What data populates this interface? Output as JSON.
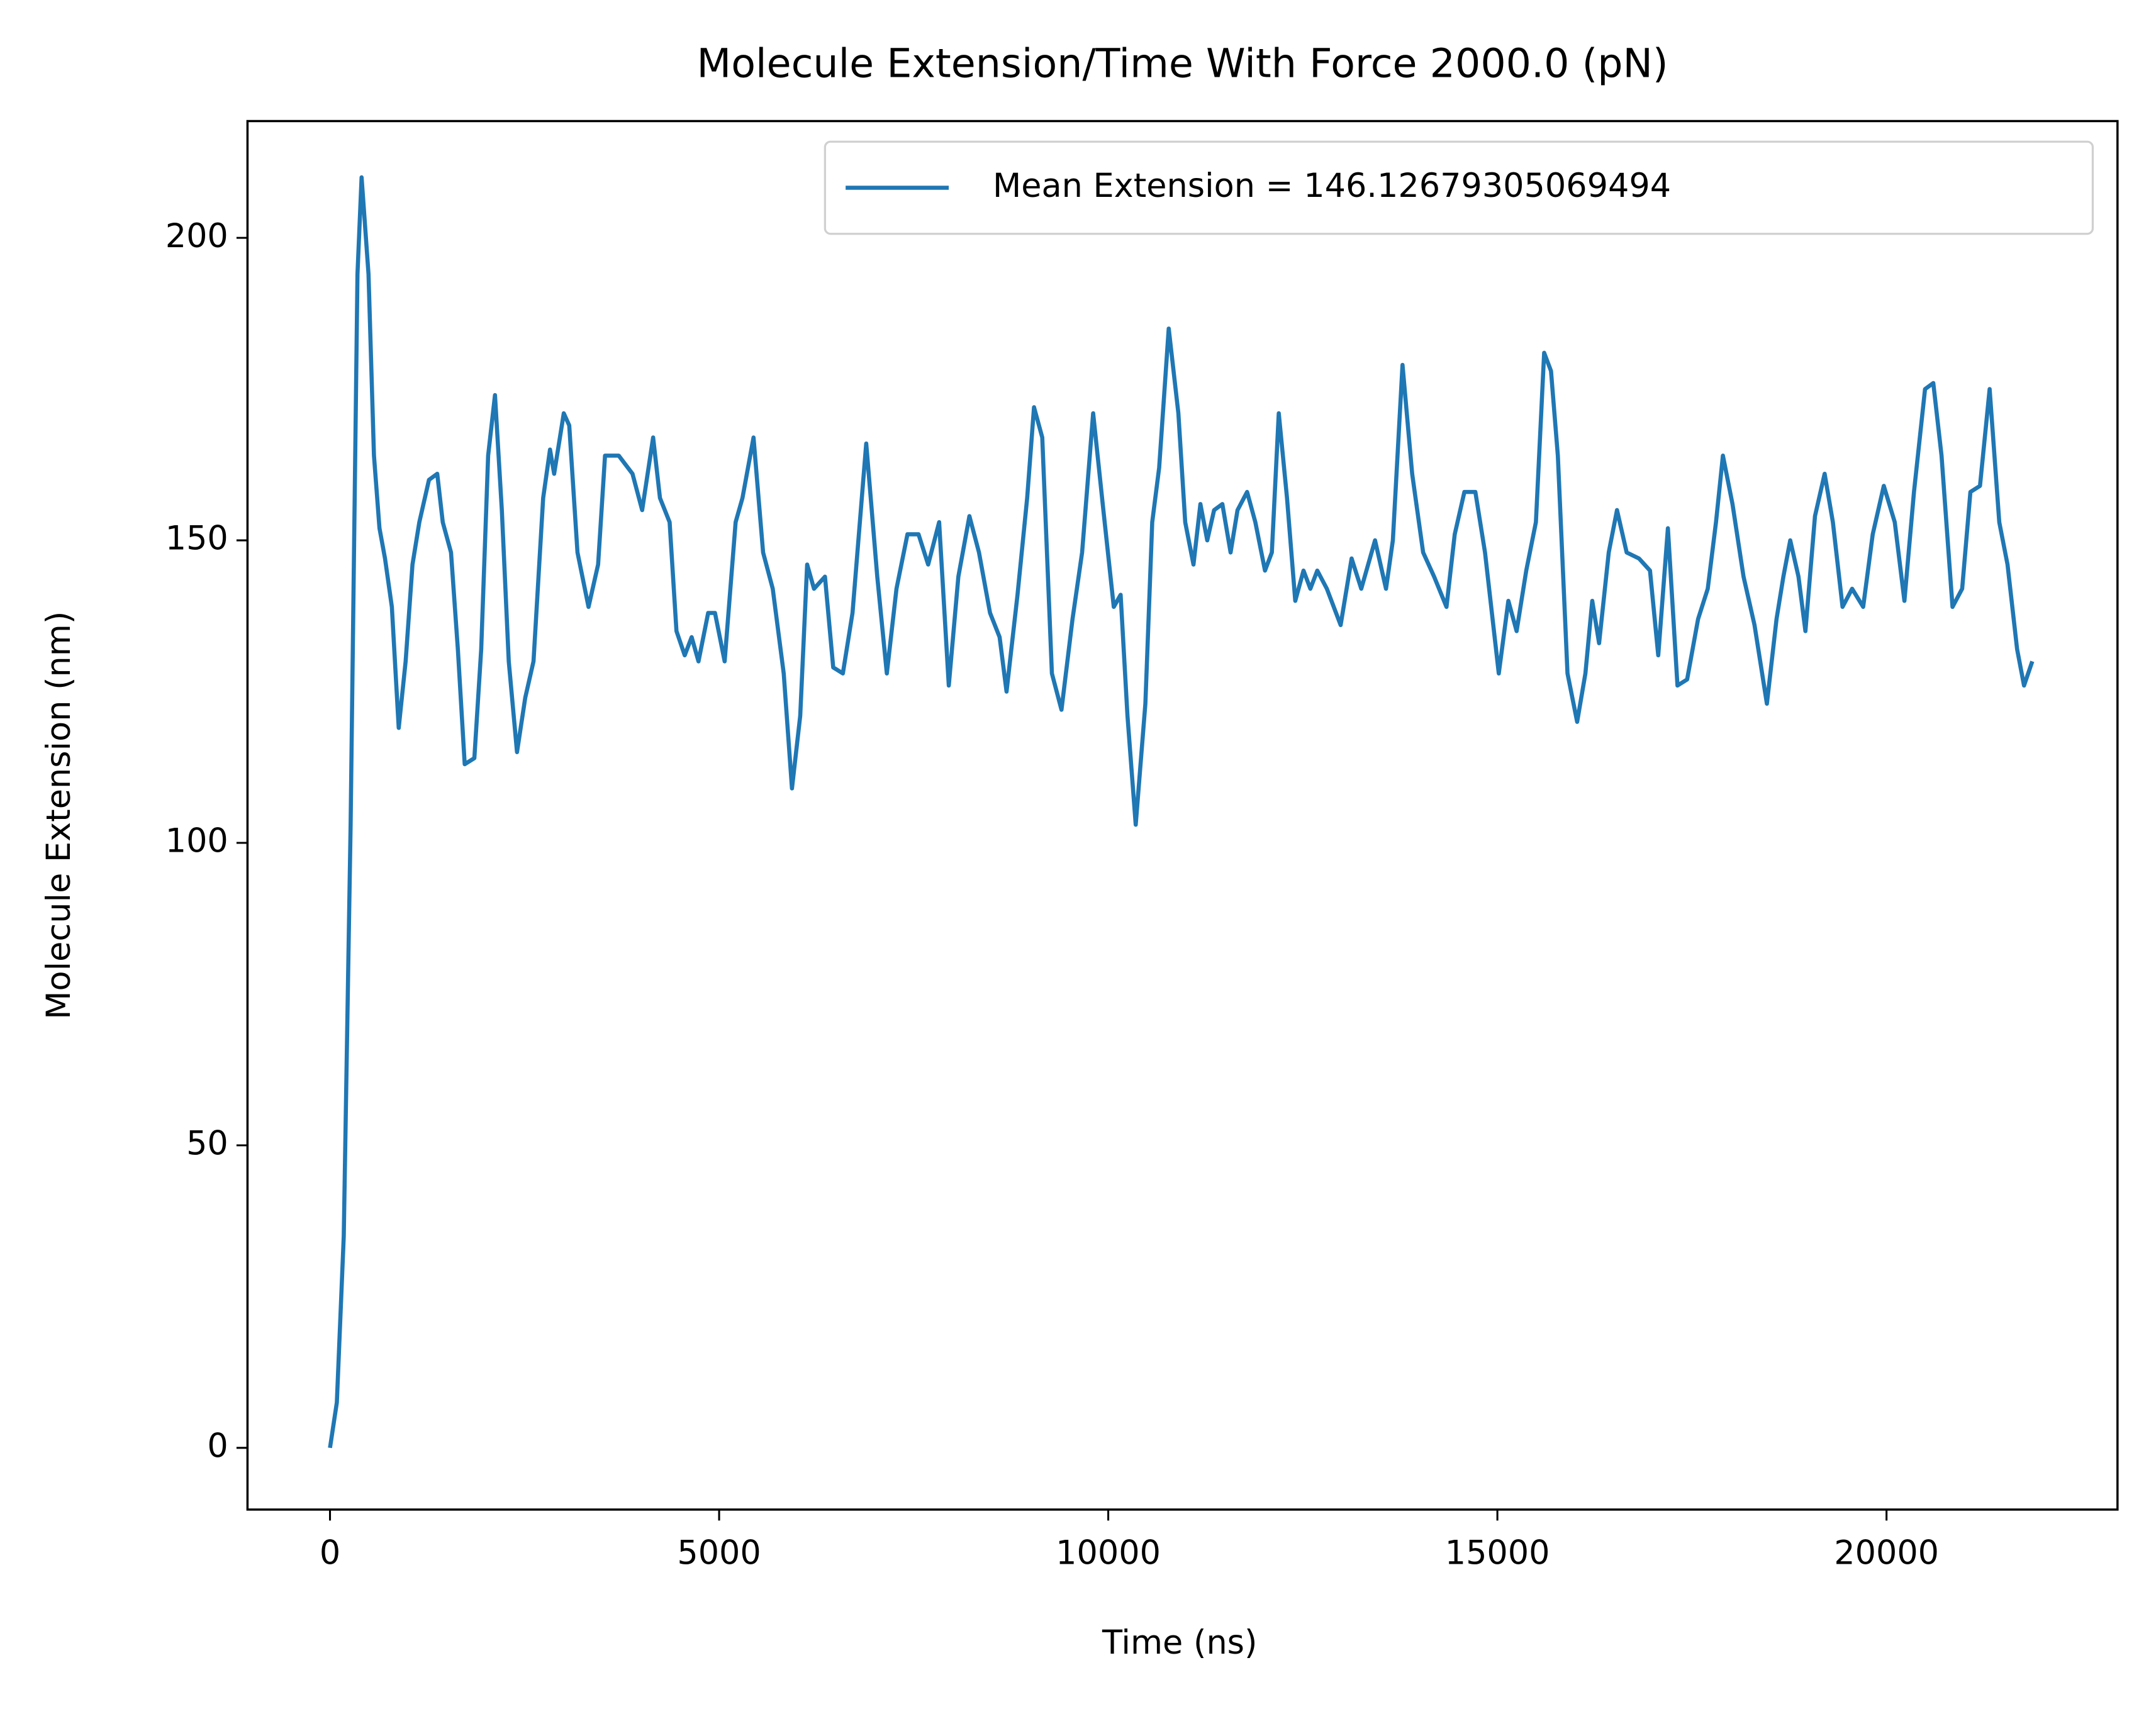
{
  "chart_data": {
    "type": "line",
    "title": "Molecule Extension/Time With Force 2000.0 (pN)",
    "x_label": "Time (ns)",
    "y_label": "Molecule Extension (nm)",
    "xlim": [
      -1060,
      22968
    ],
    "ylim": [
      -10.2,
      219.3
    ],
    "xticks": [
      0,
      5000,
      10000,
      15000,
      20000
    ],
    "yticks": [
      0,
      50,
      100,
      150,
      200
    ],
    "legend_position": "upper right",
    "series": [
      {
        "name": "Mean Extension = 146.12679305069494",
        "color": "#1f77b4",
        "x": [
          0,
          88,
          177,
          265,
          353,
          406,
          495,
          565,
          636,
          707,
          795,
          883,
          972,
          1060,
          1148,
          1272,
          1378,
          1449,
          1555,
          1643,
          1731,
          1855,
          1943,
          2032,
          2120,
          2208,
          2297,
          2403,
          2509,
          2615,
          2739,
          2827,
          2880,
          3004,
          3074,
          3180,
          3322,
          3445,
          3534,
          3710,
          3887,
          4011,
          4152,
          4240,
          4364,
          4452,
          4558,
          4647,
          4735,
          4859,
          4947,
          5071,
          5212,
          5300,
          5442,
          5565,
          5689,
          5830,
          5936,
          6042,
          6131,
          6219,
          6360,
          6466,
          6590,
          6714,
          6890,
          7032,
          7155,
          7279,
          7420,
          7562,
          7686,
          7827,
          7951,
          8074,
          8216,
          8339,
          8481,
          8604,
          8693,
          8834,
          8958,
          9046,
          9152,
          9276,
          9399,
          9541,
          9664,
          9806,
          9929,
          10071,
          10159,
          10247,
          10353,
          10477,
          10565,
          10654,
          10777,
          10901,
          10989,
          11095,
          11184,
          11272,
          11360,
          11466,
          11572,
          11661,
          11784,
          11890,
          12014,
          12102,
          12191,
          12297,
          12403,
          12509,
          12597,
          12686,
          12809,
          12986,
          13127,
          13251,
          13428,
          13569,
          13657,
          13781,
          13905,
          14046,
          14187,
          14346,
          14452,
          14576,
          14717,
          14841,
          15018,
          15141,
          15247,
          15371,
          15495,
          15601,
          15689,
          15777,
          15901,
          16025,
          16131,
          16219,
          16307,
          16431,
          16537,
          16661,
          16820,
          16961,
          17067,
          17191,
          17314,
          17438,
          17579,
          17703,
          17809,
          17898,
          18021,
          18163,
          18304,
          18463,
          18587,
          18675,
          18763,
          18869,
          18958,
          19081,
          19205,
          19311,
          19435,
          19558,
          19700,
          19823,
          19965,
          20106,
          20230,
          20353,
          20495,
          20601,
          20707,
          20848,
          20972,
          21078,
          21201,
          21325,
          21449,
          21555,
          21678,
          21767,
          21873
        ],
        "values": [
          0,
          7.5,
          35,
          103,
          194,
          210,
          194,
          164,
          152,
          147,
          139,
          119,
          130,
          146,
          153,
          160,
          161,
          153,
          148,
          132,
          113,
          114,
          132,
          164,
          174,
          155,
          130,
          115,
          124,
          130,
          157,
          165,
          161,
          171,
          169,
          148,
          139,
          146,
          164,
          164,
          161,
          155,
          167,
          157,
          153,
          135,
          131,
          134,
          130,
          138,
          138,
          130,
          153,
          157,
          167,
          148,
          142,
          128,
          109,
          121,
          146,
          142,
          144,
          129,
          128,
          138,
          166,
          144,
          128,
          142,
          151,
          151,
          146,
          153,
          126,
          144,
          154,
          148,
          138,
          134,
          125,
          141,
          157,
          172,
          167,
          128,
          122,
          137,
          148,
          171,
          156,
          139,
          141,
          121,
          103,
          123,
          153,
          162,
          185,
          171,
          153,
          146,
          156,
          150,
          155,
          156,
          148,
          155,
          158,
          153,
          145,
          148,
          171,
          157,
          140,
          145,
          142,
          145,
          142,
          136,
          147,
          142,
          150,
          142,
          150,
          179,
          161,
          148,
          144,
          139,
          151,
          158,
          158,
          148,
          128,
          140,
          135,
          145,
          153,
          181,
          178,
          164,
          128,
          120,
          128,
          140,
          133,
          148,
          155,
          148,
          147,
          145,
          131,
          152,
          126,
          127,
          137,
          142,
          153,
          164,
          156,
          144,
          136,
          123,
          137,
          144,
          150,
          144,
          135,
          154,
          161,
          153,
          139,
          142,
          139,
          151,
          159,
          153,
          140,
          158,
          175,
          176,
          164,
          139,
          142,
          158,
          159,
          175,
          153,
          146,
          132,
          126,
          130
        ]
      }
    ]
  }
}
